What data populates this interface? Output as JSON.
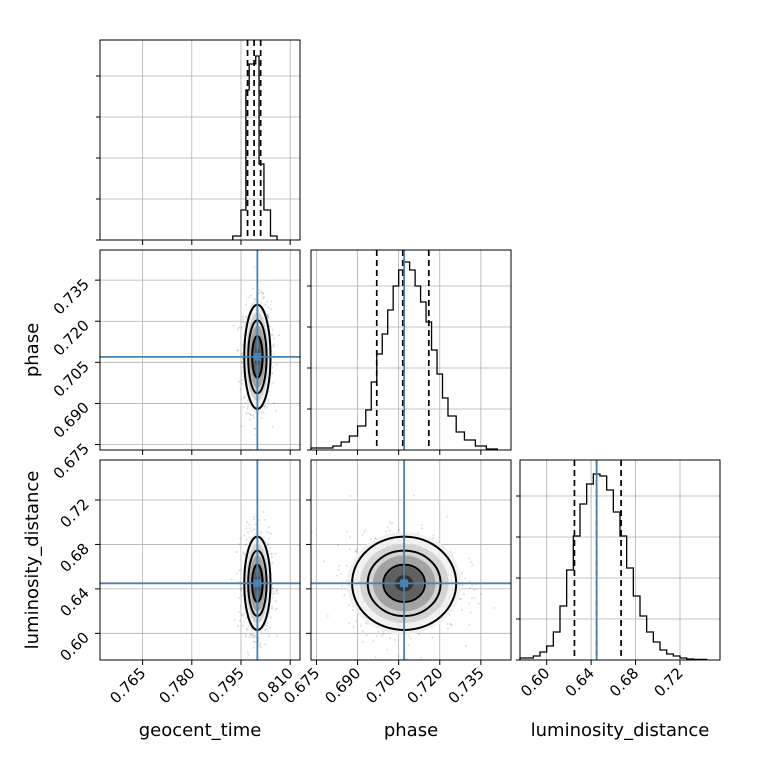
{
  "chart_data": {
    "type": "corner",
    "parameters": [
      {
        "name": "geocent_time",
        "label": "geocent_time",
        "range": [
          0.752,
          0.813
        ],
        "ticks": [
          0.765,
          0.78,
          0.795,
          0.81
        ],
        "tick_labels": [
          "0.765",
          "0.780",
          "0.795",
          "0.810"
        ],
        "truth": 0.8,
        "quantiles": [
          0.797,
          0.799,
          0.801
        ],
        "hist_edges": [
          0.7925,
          0.795,
          0.7965,
          0.7975,
          0.7985,
          0.7995,
          0.8005,
          0.802,
          0.804,
          0.806
        ],
        "hist_values": [
          0.02,
          0.15,
          0.75,
          0.88,
          0.88,
          0.92,
          0.38,
          0.15,
          0.02
        ]
      },
      {
        "name": "phase",
        "label": "phase",
        "range": [
          0.673,
          0.746
        ],
        "ticks": [
          0.675,
          0.69,
          0.705,
          0.72,
          0.735
        ],
        "tick_labels": [
          "0.675",
          "0.690",
          "0.705",
          "0.720",
          "0.735"
        ],
        "truth": 0.707,
        "quantiles": [
          0.697,
          0.7065,
          0.716
        ],
        "hist_edges": [
          0.673,
          0.677,
          0.681,
          0.684,
          0.687,
          0.69,
          0.693,
          0.695,
          0.697,
          0.699,
          0.701,
          0.703,
          0.705,
          0.707,
          0.709,
          0.711,
          0.713,
          0.715,
          0.717,
          0.719,
          0.721,
          0.723,
          0.726,
          0.729,
          0.733,
          0.737,
          0.741
        ],
        "hist_values": [
          0.01,
          0.01,
          0.02,
          0.04,
          0.07,
          0.12,
          0.2,
          0.34,
          0.48,
          0.58,
          0.7,
          0.82,
          0.9,
          0.94,
          0.9,
          0.82,
          0.74,
          0.64,
          0.5,
          0.38,
          0.26,
          0.17,
          0.09,
          0.05,
          0.02,
          0.005
        ]
      },
      {
        "name": "luminosity_distance",
        "label": "luminosity_distance",
        "range": [
          0.576,
          0.756
        ],
        "ticks": [
          0.6,
          0.64,
          0.68,
          0.72
        ],
        "tick_labels": [
          "0.60",
          "0.64",
          "0.68",
          "0.72"
        ],
        "truth": 0.645,
        "quantiles": [
          0.625,
          0.645,
          0.667
        ],
        "hist_edges": [
          0.576,
          0.588,
          0.594,
          0.6,
          0.606,
          0.612,
          0.618,
          0.624,
          0.63,
          0.636,
          0.642,
          0.648,
          0.654,
          0.66,
          0.666,
          0.672,
          0.678,
          0.684,
          0.69,
          0.696,
          0.702,
          0.708,
          0.714,
          0.72,
          0.726,
          0.732,
          0.744
        ],
        "hist_values": [
          0.01,
          0.02,
          0.04,
          0.07,
          0.14,
          0.27,
          0.45,
          0.62,
          0.78,
          0.88,
          0.93,
          0.92,
          0.85,
          0.74,
          0.62,
          0.46,
          0.32,
          0.22,
          0.14,
          0.09,
          0.05,
          0.03,
          0.02,
          0.01,
          0.005,
          0.003
        ]
      }
    ],
    "grid": true,
    "truth_color": "#4682b4",
    "contour_levels": [
      "inner",
      "middle",
      "outer"
    ],
    "fill_colors": [
      "#f0f0f0",
      "#cfcfcf",
      "#9a9a9a",
      "#555555",
      "#2a2a2a"
    ]
  }
}
